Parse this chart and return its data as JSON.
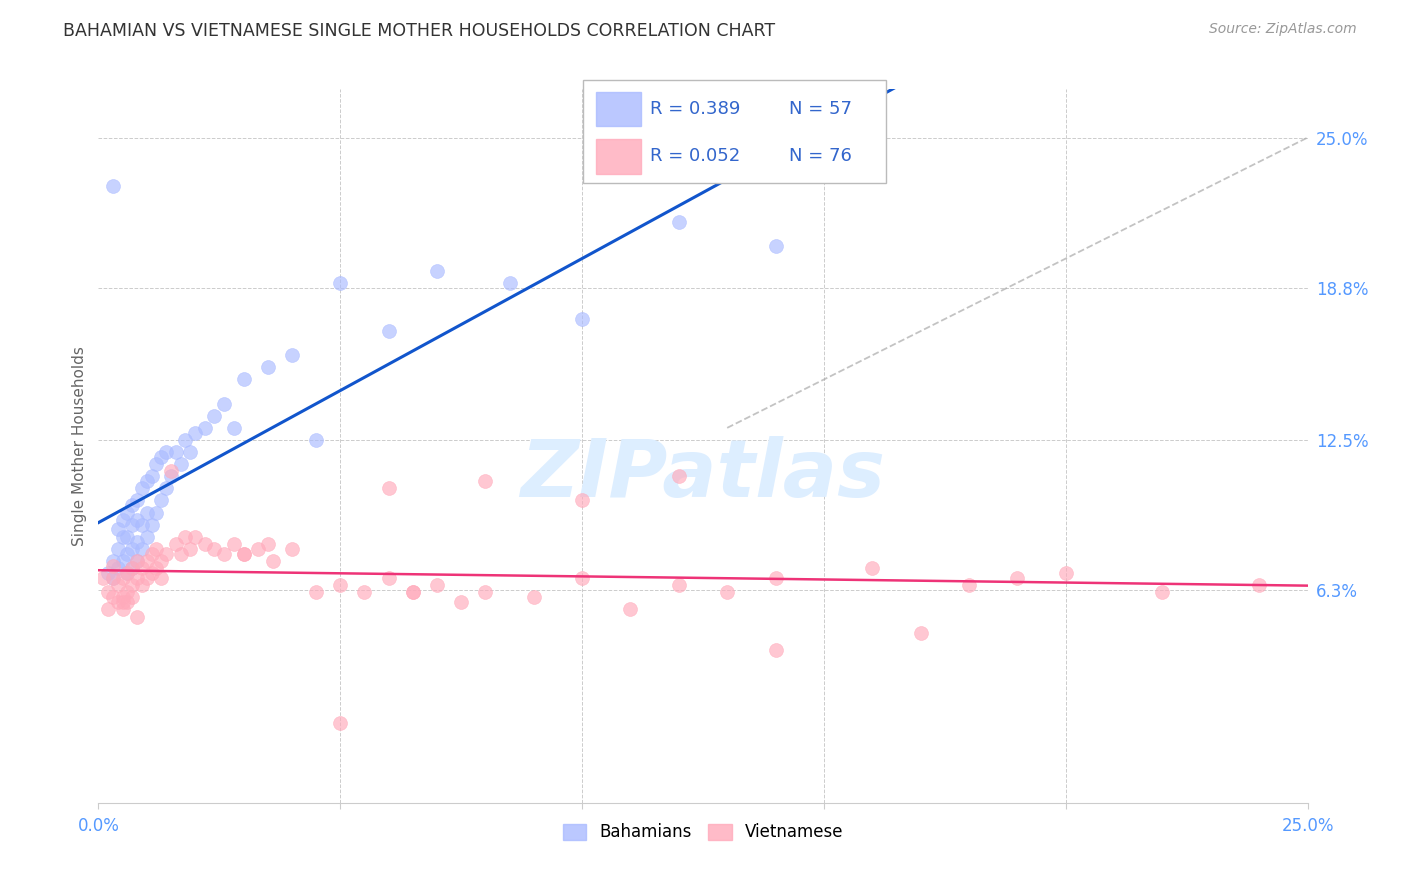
{
  "title": "BAHAMIAN VS VIETNAMESE SINGLE MOTHER HOUSEHOLDS CORRELATION CHART",
  "source": "Source: ZipAtlas.com",
  "ylabel": "Single Mother Households",
  "xlim": [
    0.0,
    0.25
  ],
  "ylim": [
    -0.025,
    0.27
  ],
  "right_ytick_labels": [
    "25.0%",
    "18.8%",
    "12.5%",
    "6.3%"
  ],
  "right_ytick_values": [
    0.25,
    0.188,
    0.125,
    0.063
  ],
  "legend_blue_r": "R = 0.389",
  "legend_blue_n": "N = 57",
  "legend_pink_r": "R = 0.052",
  "legend_pink_n": "N = 76",
  "legend_blue_label": "Bahamians",
  "legend_pink_label": "Vietnamese",
  "blue_scatter_color": "#aabbff",
  "pink_scatter_color": "#ffaabb",
  "blue_line_color": "#1155cc",
  "pink_line_color": "#ee3377",
  "dash_line_color": "#aaaaaa",
  "grid_color": "#cccccc",
  "title_color": "#333333",
  "axis_label_color": "#666666",
  "tick_color": "#5599ff",
  "legend_text_color": "#3366cc",
  "watermark_color": "#ddeeff",
  "bahamian_x": [
    0.002,
    0.003,
    0.003,
    0.004,
    0.004,
    0.004,
    0.005,
    0.005,
    0.005,
    0.006,
    0.006,
    0.006,
    0.006,
    0.007,
    0.007,
    0.007,
    0.007,
    0.008,
    0.008,
    0.008,
    0.008,
    0.009,
    0.009,
    0.009,
    0.01,
    0.01,
    0.01,
    0.011,
    0.011,
    0.012,
    0.012,
    0.013,
    0.013,
    0.014,
    0.014,
    0.015,
    0.016,
    0.017,
    0.018,
    0.019,
    0.02,
    0.022,
    0.024,
    0.026,
    0.028,
    0.03,
    0.035,
    0.04,
    0.045,
    0.05,
    0.06,
    0.07,
    0.085,
    0.1,
    0.12,
    0.14,
    0.003
  ],
  "bahamian_y": [
    0.07,
    0.068,
    0.075,
    0.072,
    0.08,
    0.088,
    0.075,
    0.085,
    0.092,
    0.07,
    0.078,
    0.085,
    0.095,
    0.072,
    0.08,
    0.09,
    0.098,
    0.075,
    0.083,
    0.092,
    0.1,
    0.08,
    0.09,
    0.105,
    0.085,
    0.095,
    0.108,
    0.09,
    0.11,
    0.095,
    0.115,
    0.1,
    0.118,
    0.105,
    0.12,
    0.11,
    0.12,
    0.115,
    0.125,
    0.12,
    0.128,
    0.13,
    0.135,
    0.14,
    0.13,
    0.15,
    0.155,
    0.16,
    0.125,
    0.19,
    0.17,
    0.195,
    0.19,
    0.175,
    0.215,
    0.205,
    0.23
  ],
  "vietnamese_x": [
    0.001,
    0.002,
    0.002,
    0.003,
    0.003,
    0.003,
    0.004,
    0.004,
    0.005,
    0.005,
    0.005,
    0.006,
    0.006,
    0.006,
    0.007,
    0.007,
    0.007,
    0.008,
    0.008,
    0.009,
    0.009,
    0.01,
    0.01,
    0.011,
    0.011,
    0.012,
    0.012,
    0.013,
    0.013,
    0.014,
    0.015,
    0.016,
    0.017,
    0.018,
    0.019,
    0.02,
    0.022,
    0.024,
    0.026,
    0.028,
    0.03,
    0.033,
    0.036,
    0.04,
    0.045,
    0.05,
    0.055,
    0.06,
    0.065,
    0.07,
    0.075,
    0.08,
    0.09,
    0.1,
    0.11,
    0.12,
    0.13,
    0.14,
    0.16,
    0.18,
    0.2,
    0.22,
    0.24,
    0.17,
    0.19,
    0.06,
    0.08,
    0.1,
    0.12,
    0.05,
    0.005,
    0.008,
    0.03,
    0.035,
    0.065,
    0.14
  ],
  "vietnamese_y": [
    0.068,
    0.062,
    0.055,
    0.06,
    0.068,
    0.073,
    0.058,
    0.065,
    0.06,
    0.068,
    0.055,
    0.062,
    0.07,
    0.058,
    0.065,
    0.072,
    0.06,
    0.068,
    0.075,
    0.065,
    0.072,
    0.068,
    0.075,
    0.07,
    0.078,
    0.072,
    0.08,
    0.075,
    0.068,
    0.078,
    0.112,
    0.082,
    0.078,
    0.085,
    0.08,
    0.085,
    0.082,
    0.08,
    0.078,
    0.082,
    0.078,
    0.08,
    0.075,
    0.08,
    0.062,
    0.065,
    0.062,
    0.068,
    0.062,
    0.065,
    0.058,
    0.062,
    0.06,
    0.068,
    0.055,
    0.065,
    0.062,
    0.068,
    0.072,
    0.065,
    0.07,
    0.062,
    0.065,
    0.045,
    0.068,
    0.105,
    0.108,
    0.1,
    0.11,
    0.008,
    0.058,
    0.052,
    0.078,
    0.082,
    0.062,
    0.038
  ]
}
